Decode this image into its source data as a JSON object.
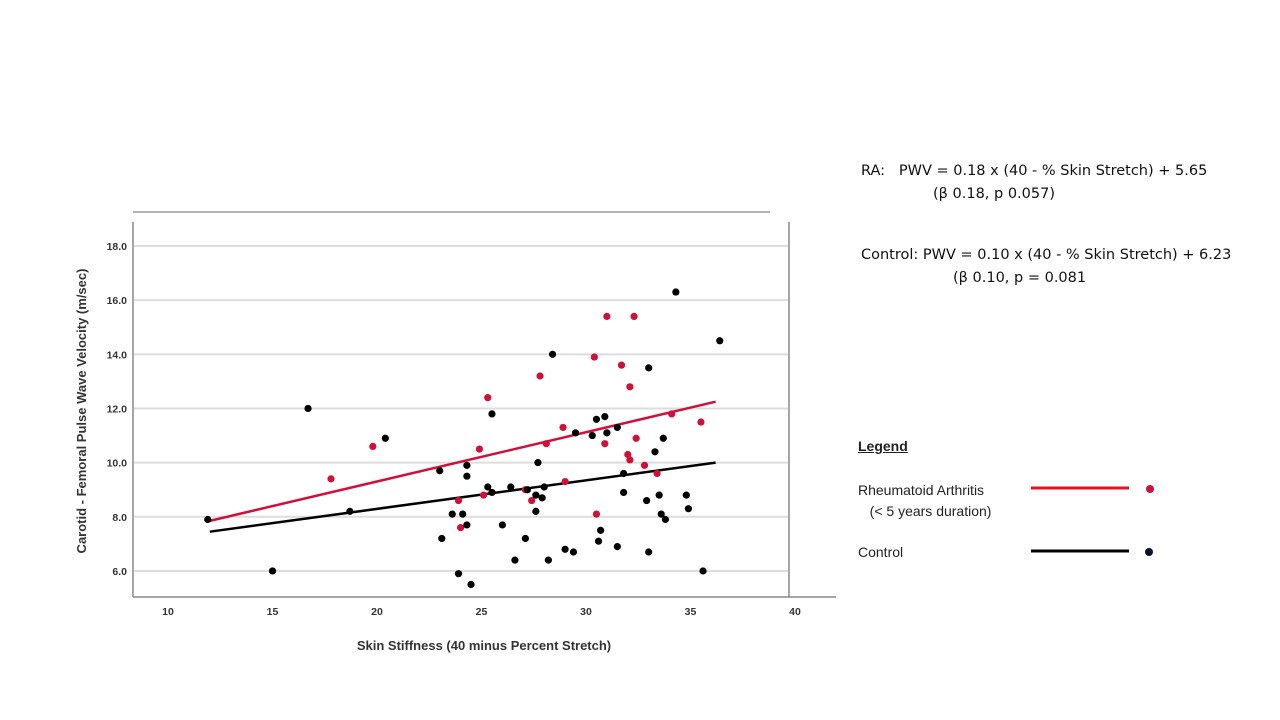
{
  "chart_data": {
    "type": "scatter",
    "title": "",
    "xlabel": "Skin Stiffness (40 minus Percent Stretch)",
    "ylabel": "Carotid - Femoral Pulse Wave Velocity (m/sec)",
    "xlim": [
      8.3,
      41.8
    ],
    "ylim": [
      5.1,
      19.0
    ],
    "xticks": [
      10,
      15,
      20,
      25,
      30,
      35,
      40
    ],
    "yticks": [
      "6.0",
      "8.0",
      "10.0",
      "12.0",
      "14.0",
      "16.0",
      "18.0"
    ],
    "grid": "horizontal",
    "legend_position": "right",
    "series": [
      {
        "name": "Rheumatoid Arthritis (< 5 years duration)",
        "color": "#d0103a",
        "fit_line": {
          "x": [
            12.0,
            36.2
          ],
          "y": [
            7.85,
            12.25
          ]
        },
        "points": [
          [
            17.8,
            9.4
          ],
          [
            19.8,
            10.6
          ],
          [
            23.9,
            8.6
          ],
          [
            24.0,
            7.6
          ],
          [
            24.9,
            10.5
          ],
          [
            25.1,
            8.8
          ],
          [
            25.3,
            12.4
          ],
          [
            27.1,
            9.0
          ],
          [
            27.4,
            8.6
          ],
          [
            27.8,
            13.2
          ],
          [
            28.1,
            10.7
          ],
          [
            28.9,
            11.3
          ],
          [
            29.0,
            9.3
          ],
          [
            30.4,
            13.9
          ],
          [
            30.5,
            8.1
          ],
          [
            30.9,
            10.7
          ],
          [
            31.0,
            15.4
          ],
          [
            31.7,
            13.6
          ],
          [
            32.0,
            10.3
          ],
          [
            32.1,
            10.1
          ],
          [
            32.1,
            12.8
          ],
          [
            32.3,
            15.4
          ],
          [
            32.4,
            10.9
          ],
          [
            32.8,
            9.9
          ],
          [
            33.4,
            9.6
          ],
          [
            34.1,
            11.8
          ],
          [
            35.5,
            11.5
          ]
        ]
      },
      {
        "name": "Control",
        "color": "#000000",
        "fit_line": {
          "x": [
            12.0,
            36.2
          ],
          "y": [
            7.45,
            10.0
          ]
        },
        "points": [
          [
            11.9,
            7.9
          ],
          [
            15.0,
            6.0
          ],
          [
            16.7,
            12.0
          ],
          [
            18.7,
            8.2
          ],
          [
            20.4,
            10.9
          ],
          [
            23.0,
            9.7
          ],
          [
            23.1,
            7.2
          ],
          [
            23.6,
            8.1
          ],
          [
            23.9,
            5.9
          ],
          [
            24.1,
            8.1
          ],
          [
            24.3,
            9.9
          ],
          [
            24.3,
            9.5
          ],
          [
            24.3,
            7.7
          ],
          [
            24.5,
            5.5
          ],
          [
            25.3,
            9.1
          ],
          [
            25.5,
            8.9
          ],
          [
            25.5,
            11.8
          ],
          [
            26.0,
            7.7
          ],
          [
            26.4,
            9.1
          ],
          [
            26.6,
            6.4
          ],
          [
            27.1,
            7.2
          ],
          [
            27.2,
            9.0
          ],
          [
            27.6,
            8.2
          ],
          [
            27.7,
            10.0
          ],
          [
            27.6,
            8.8
          ],
          [
            27.9,
            8.7
          ],
          [
            28.0,
            9.1
          ],
          [
            28.2,
            6.4
          ],
          [
            28.4,
            14.0
          ],
          [
            29.0,
            6.8
          ],
          [
            29.4,
            6.7
          ],
          [
            29.5,
            11.1
          ],
          [
            30.3,
            11.0
          ],
          [
            30.5,
            11.6
          ],
          [
            30.6,
            7.1
          ],
          [
            30.7,
            7.5
          ],
          [
            30.9,
            11.7
          ],
          [
            31.0,
            11.1
          ],
          [
            31.5,
            11.3
          ],
          [
            31.5,
            6.9
          ],
          [
            31.8,
            8.9
          ],
          [
            31.8,
            9.6
          ],
          [
            32.9,
            8.6
          ],
          [
            33.0,
            6.7
          ],
          [
            33.0,
            13.5
          ],
          [
            33.3,
            10.4
          ],
          [
            33.5,
            8.8
          ],
          [
            33.6,
            8.1
          ],
          [
            33.8,
            7.9
          ],
          [
            33.7,
            10.9
          ],
          [
            34.3,
            16.3
          ],
          [
            34.8,
            8.8
          ],
          [
            34.9,
            8.3
          ],
          [
            35.6,
            6.0
          ],
          [
            36.4,
            14.5
          ]
        ]
      }
    ]
  },
  "equations": {
    "ra_line1": "RA:   PWV = 0.18 x (40 - % Skin Stretch) + 5.65",
    "ra_line2": "(β 0.18, p 0.057)",
    "control_line1": "Control: PWV = 0.10 x (40 - % Skin Stretch) + 6.23",
    "control_line2": "(β 0.10, p = 0.081"
  },
  "legend": {
    "title": "Legend",
    "ra_label": "Rheumatoid Arthritis\n   (< 5 years duration)",
    "control_label": "Control",
    "ra_color": "#e8101c",
    "control_color": "#000000"
  }
}
